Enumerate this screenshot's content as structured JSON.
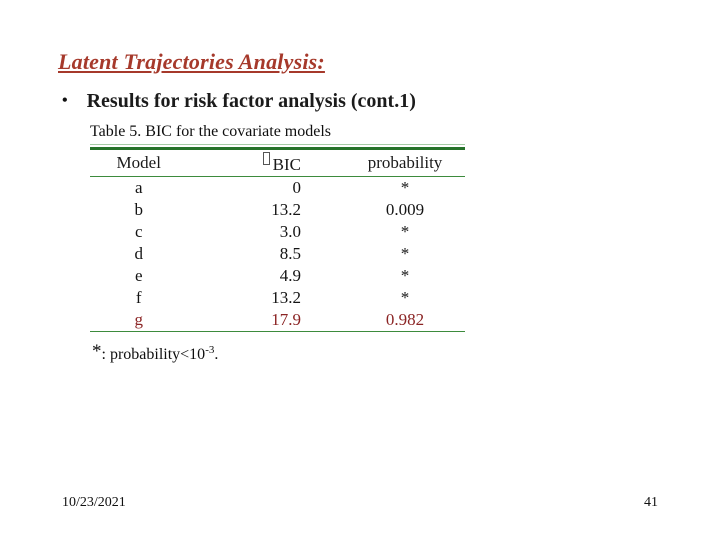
{
  "slide": {
    "title": "Latent Trajectories Analysis:",
    "bullet_marker": "•",
    "bullet_text": "Results for risk factor analysis (cont.1)",
    "table_caption": "Table 5. BIC for the covariate models"
  },
  "table": {
    "columns": [
      "Model",
      "BIC",
      "probability"
    ],
    "bic_prefix_glyph": "missing-character-box",
    "rows": [
      {
        "model": "a",
        "bic": "0",
        "probability": "*"
      },
      {
        "model": "b",
        "bic": "13.2",
        "probability": "0.009"
      },
      {
        "model": "c",
        "bic": "3.0",
        "probability": "*"
      },
      {
        "model": "d",
        "bic": "8.5",
        "probability": "*"
      },
      {
        "model": "e",
        "bic": "4.9",
        "probability": "*"
      },
      {
        "model": "f",
        "bic": "13.2",
        "probability": "*"
      },
      {
        "model": "g",
        "bic": "17.9",
        "probability": "0.982"
      }
    ],
    "highlighted_row": "g"
  },
  "footnote": {
    "marker": "*",
    "body": ": probability<10",
    "superscript": "-3",
    "period": "."
  },
  "footer": {
    "date": "10/23/2021",
    "page_number": "41"
  },
  "colors": {
    "title_red": "#a6392b",
    "body_text": "#1a1a1a",
    "table_border_dark_green": "#26722a",
    "table_border_green": "#3d8b3d",
    "table_border_light_green": "#a6cca6",
    "highlight_row_maroon": "#8b2424"
  },
  "chart_data": {
    "type": "table",
    "title": "Table 5. BIC for the covariate models",
    "columns": [
      "Model",
      "▯BIC",
      "probability"
    ],
    "rows": [
      [
        "a",
        "0",
        "*"
      ],
      [
        "b",
        "13.2",
        "0.009"
      ],
      [
        "c",
        "3.0",
        "*"
      ],
      [
        "d",
        "8.5",
        "*"
      ],
      [
        "e",
        "4.9",
        "*"
      ],
      [
        "f",
        "13.2",
        "*"
      ],
      [
        "g",
        "17.9",
        "0.982"
      ]
    ],
    "footnote": "*: probability<10^-3.",
    "highlighted_row": "g",
    "layout": {
      "rules": "horizontal-green",
      "header_separator": true
    }
  }
}
